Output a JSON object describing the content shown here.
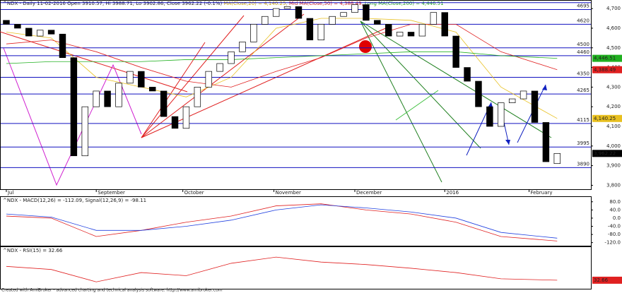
{
  "chart_data": {
    "type": "candlestick",
    "title": "^NDX - Daily 11-02-2016 Open 3910.57, Hi 3988.71, Lo 3902.86, Close 3962.22 (-0.1%)",
    "ma_titles": [
      "MA(Close,20) = 4,140.25,",
      "Mid MA(Close,50) = 4,388.49,",
      "Long MA(Close,200) = 4,446.51"
    ],
    "xlim": [
      -0.5,
      52
    ],
    "xticks": [
      {
        "value": 0,
        "label": "Jul"
      },
      {
        "value": 8,
        "label": "September"
      },
      {
        "value": 15.7,
        "label": "October"
      },
      {
        "value": 23.8,
        "label": "November"
      },
      {
        "value": 31,
        "label": "December"
      },
      {
        "value": 39,
        "label": "2016"
      },
      {
        "value": 46.5,
        "label": "February"
      }
    ],
    "ylim": [
      3780,
      4740
    ],
    "yticks": [
      {
        "value": 4700,
        "label": "4,700"
      },
      {
        "value": 4600,
        "label": "4,600"
      },
      {
        "value": 4500,
        "label": "4,500"
      },
      {
        "value": 4400,
        "label": "4,400"
      },
      {
        "value": 4300,
        "label": "4,300"
      },
      {
        "value": 4200,
        "label": "4,200"
      },
      {
        "value": 4100,
        "label": "4,100"
      },
      {
        "value": 4000,
        "label": "4,000"
      },
      {
        "value": 3900,
        "label": "3,900"
      },
      {
        "value": 3800,
        "label": "3,800"
      }
    ],
    "levels": [
      4730,
      4695,
      4620,
      4500,
      4460,
      4350,
      4265,
      4115,
      3995,
      3890
    ],
    "open": [
      4640,
      4620,
      4600,
      4560,
      4590,
      4570,
      4450,
      3950,
      4200,
      4280,
      4200,
      4320,
      4380,
      4300,
      4280,
      4150,
      4090,
      4200,
      4300,
      4380,
      4420,
      4480,
      4530,
      4620,
      4660,
      4700,
      4710,
      4650,
      4540,
      4620,
      4660,
      4680,
      4720,
      4640,
      4620,
      4560,
      4580,
      4560,
      4620,
      4680,
      4560,
      4400,
      4330,
      4200,
      4100,
      4220,
      4240,
      4280,
      4120,
      3910.57
    ],
    "close": [
      4620,
      4600,
      4560,
      4590,
      4570,
      4450,
      3950,
      4200,
      4280,
      4200,
      4320,
      4380,
      4300,
      4280,
      4150,
      4090,
      4200,
      4300,
      4380,
      4420,
      4480,
      4530,
      4620,
      4660,
      4700,
      4710,
      4650,
      4540,
      4620,
      4660,
      4680,
      4720,
      4640,
      4620,
      4560,
      4580,
      4560,
      4620,
      4680,
      4560,
      4400,
      4330,
      4200,
      4100,
      4220,
      4240,
      4280,
      4120,
      3920,
      3962.22
    ],
    "close_tag": "3,962.22",
    "series": [
      {
        "name": "MA20",
        "color": "#e8c020",
        "x": [
          0,
          4,
          8,
          12,
          16,
          20,
          24,
          28,
          32,
          36,
          40,
          44,
          49
        ],
        "values": [
          4580,
          4550,
          4350,
          4300,
          4250,
          4350,
          4600,
          4650,
          4650,
          4640,
          4580,
          4300,
          4140.25
        ],
        "tag": "4,140.25"
      },
      {
        "name": "MA50",
        "color": "#e02020",
        "x": [
          0,
          4,
          8,
          12,
          16,
          20,
          24,
          28,
          32,
          36,
          40,
          44,
          49
        ],
        "values": [
          4520,
          4540,
          4480,
          4400,
          4330,
          4300,
          4380,
          4450,
          4550,
          4620,
          4620,
          4480,
          4388.49
        ],
        "tag": "4,388.49"
      },
      {
        "name": "MA200",
        "color": "#20b020",
        "x": [
          0,
          4,
          8,
          12,
          16,
          20,
          24,
          28,
          32,
          36,
          40,
          44,
          49
        ],
        "values": [
          4420,
          4430,
          4430,
          4430,
          4440,
          4440,
          4450,
          4460,
          4470,
          4480,
          4480,
          4460,
          4446.51
        ],
        "tag": "4,446.51"
      }
    ],
    "macd": {
      "title": "^NDX - MACD(12,26) = -112.09, Signal(12,26,9) = -98.11",
      "ylim": [
        -135,
        100
      ],
      "yticks": [
        {
          "value": 80,
          "label": "80.0"
        },
        {
          "value": 40,
          "label": "40.0"
        },
        {
          "value": 0,
          "label": "0.0"
        },
        {
          "value": -40,
          "label": "-40.0"
        },
        {
          "value": -80,
          "label": "-80.0"
        },
        {
          "value": -120,
          "label": "-120.0"
        }
      ],
      "x": [
        0,
        4,
        8,
        12,
        16,
        20,
        24,
        28,
        32,
        36,
        40,
        44,
        49
      ],
      "series": [
        {
          "name": "MACD",
          "color": "#e02020",
          "values": [
            10,
            0,
            -90,
            -60,
            -20,
            10,
            60,
            70,
            40,
            20,
            -20,
            -90,
            -112.09
          ]
        },
        {
          "name": "Signal",
          "color": "#2040e0",
          "values": [
            20,
            5,
            -60,
            -60,
            -40,
            -10,
            40,
            65,
            50,
            30,
            0,
            -70,
            -98.11
          ]
        }
      ]
    },
    "rsi": {
      "title": "^NDX - RSI(15) = 32.66",
      "ylim": [
        20,
        85
      ],
      "color": "#e02020",
      "x": [
        0,
        4,
        8,
        12,
        16,
        20,
        24,
        28,
        32,
        36,
        40,
        44,
        49
      ],
      "values": [
        55,
        50,
        30,
        45,
        40,
        60,
        70,
        62,
        58,
        52,
        45,
        35,
        32.66
      ],
      "tag": "32.66"
    },
    "footer": "Created with AmiBroker - advanced charting and technical analysis software. http://www.amibroker.com"
  }
}
